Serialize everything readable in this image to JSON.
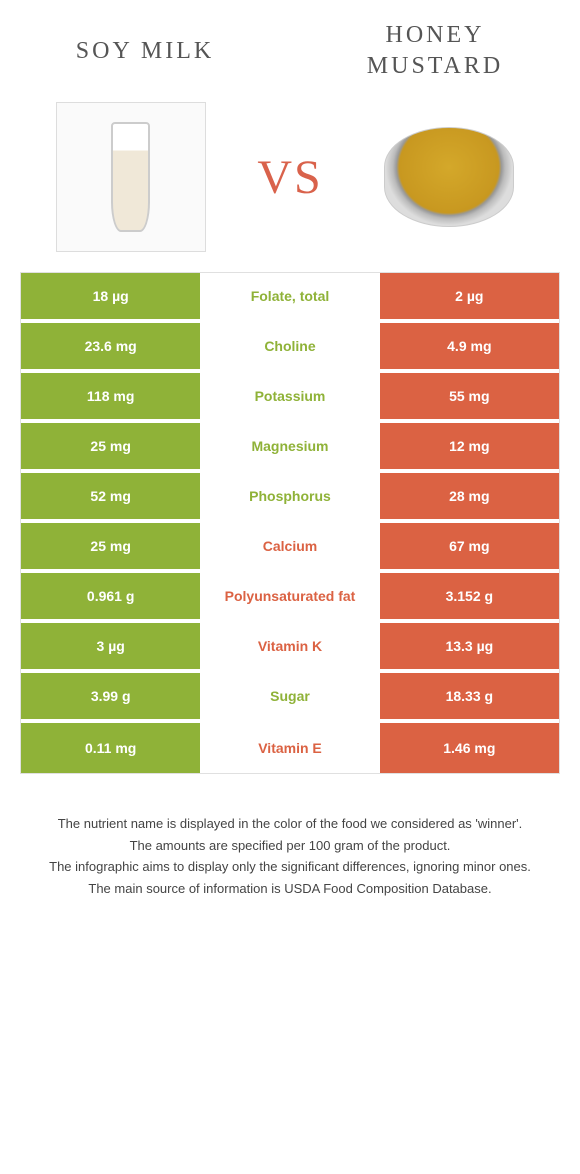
{
  "colors": {
    "left": "#8fb238",
    "right": "#db6243",
    "vs": "#d9624b"
  },
  "foods": {
    "left_title": "Soy milk",
    "right_title": "Honey mustard",
    "vs_label": "VS"
  },
  "rows": [
    {
      "left": "18 µg",
      "label": "Folate, total",
      "right": "2 µg",
      "winner": "left"
    },
    {
      "left": "23.6 mg",
      "label": "Choline",
      "right": "4.9 mg",
      "winner": "left"
    },
    {
      "left": "118 mg",
      "label": "Potassium",
      "right": "55 mg",
      "winner": "left"
    },
    {
      "left": "25 mg",
      "label": "Magnesium",
      "right": "12 mg",
      "winner": "left"
    },
    {
      "left": "52 mg",
      "label": "Phosphorus",
      "right": "28 mg",
      "winner": "left"
    },
    {
      "left": "25 mg",
      "label": "Calcium",
      "right": "67 mg",
      "winner": "right"
    },
    {
      "left": "0.961 g",
      "label": "Polyunsaturated fat",
      "right": "3.152 g",
      "winner": "right"
    },
    {
      "left": "3 µg",
      "label": "Vitamin K",
      "right": "13.3 µg",
      "winner": "right"
    },
    {
      "left": "3.99 g",
      "label": "Sugar",
      "right": "18.33 g",
      "winner": "left"
    },
    {
      "left": "0.11 mg",
      "label": "Vitamin E",
      "right": "1.46 mg",
      "winner": "right"
    }
  ],
  "notes": [
    "The nutrient name is displayed in the color of the food we considered as 'winner'.",
    "The amounts are specified per 100 gram of the product.",
    "The infographic aims to display only the significant differences, ignoring minor ones.",
    "The main source of information is USDA Food Composition Database."
  ]
}
